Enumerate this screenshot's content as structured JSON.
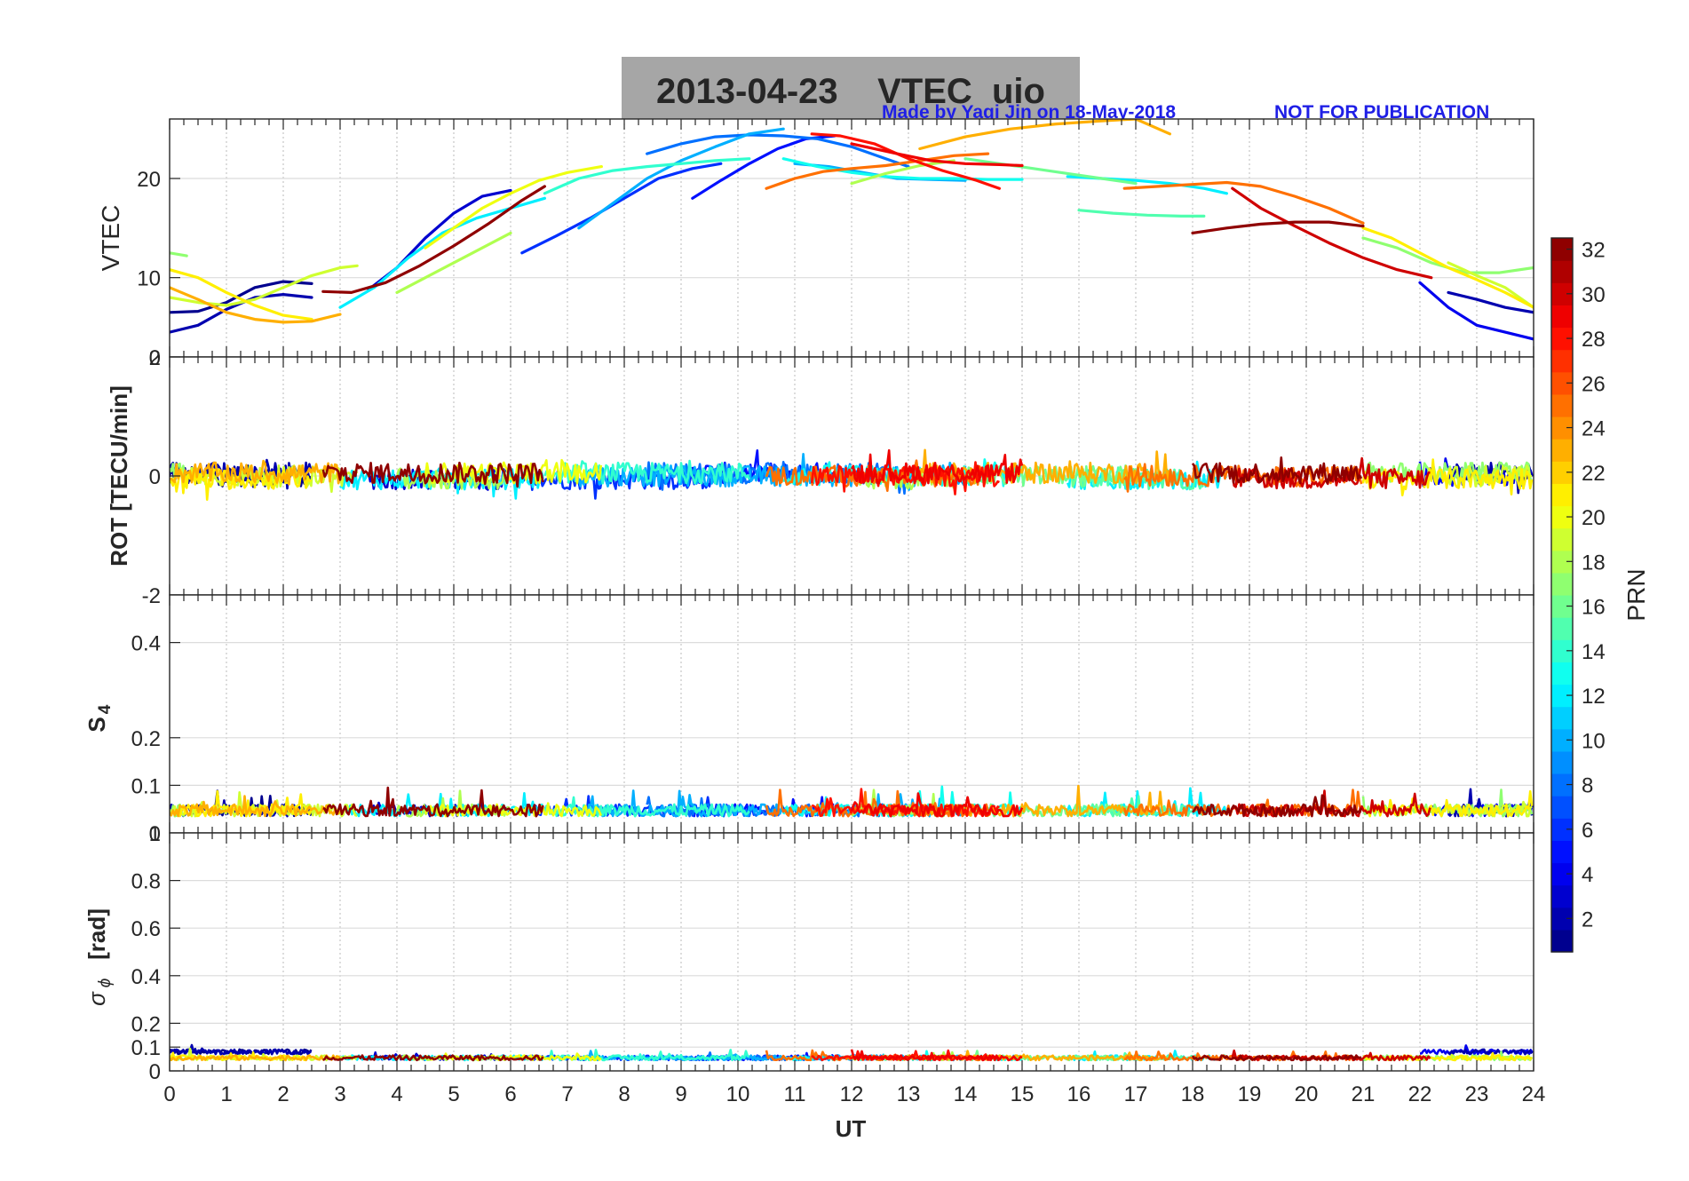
{
  "title": {
    "text": "2013-04-23    VTEC  uio",
    "credit": "Made by Yaqi Jin on 18-May-2018",
    "notice": "NOT FOR PUBLICATION"
  },
  "colors": {
    "title_bg": "#a6a6a6",
    "credit": "#1f1fe6",
    "axis": "#262626",
    "grid": "#bdbdbd"
  },
  "chart_data": [
    {
      "type": "line",
      "panel": "vtec",
      "ylabel": "VTEC",
      "xlim": [
        0,
        24
      ],
      "ylim": [
        2,
        26
      ],
      "yticks": [
        10,
        20
      ],
      "yticklabels": [
        "10",
        "20"
      ],
      "lower_edge_label": "0",
      "series": [
        {
          "prn": 1,
          "x": [
            0,
            0.5,
            1,
            1.5,
            2,
            2.5
          ],
          "y": [
            6.5,
            6.6,
            7.5,
            9.0,
            9.6,
            9.4
          ]
        },
        {
          "prn": 2,
          "x": [
            0,
            0.5,
            1,
            1.5,
            2,
            2.5
          ],
          "y": [
            4.5,
            5.2,
            6.8,
            8.0,
            8.3,
            8.0
          ]
        },
        {
          "prn": 3,
          "x": [
            3.5,
            4,
            4.5,
            5,
            5.5,
            6
          ],
          "y": [
            8.8,
            11.0,
            14.0,
            16.5,
            18.2,
            18.8
          ]
        },
        {
          "prn": 5,
          "x": [
            9.2,
            9.7,
            10.2,
            10.7,
            11.2,
            11.7
          ],
          "y": [
            18.0,
            19.8,
            21.5,
            23.0,
            24.0,
            24.3
          ]
        },
        {
          "prn": 6,
          "x": [
            6.2,
            6.8,
            7.4,
            8.0,
            8.6,
            9.2,
            9.7
          ],
          "y": [
            12.5,
            14.2,
            16.0,
            18.0,
            20.0,
            21.0,
            21.5
          ]
        },
        {
          "prn": 8,
          "x": [
            8.4,
            9.0,
            9.6,
            10.2,
            10.8,
            11.4,
            12.0,
            12.6,
            13.0
          ],
          "y": [
            22.5,
            23.5,
            24.2,
            24.4,
            24.3,
            24.0,
            23.2,
            22.0,
            21.2
          ]
        },
        {
          "prn": 4,
          "x": [
            22.0,
            22.5,
            23.0,
            23.5,
            24.0
          ],
          "y": [
            9.5,
            7.0,
            5.2,
            4.5,
            3.8
          ]
        },
        {
          "prn": 2,
          "x": [
            22.5,
            23.0,
            23.5,
            24.0
          ],
          "y": [
            8.5,
            7.8,
            7.0,
            6.5
          ]
        },
        {
          "prn": 10,
          "x": [
            7.2,
            7.8,
            8.4,
            9.0,
            9.6,
            10.2,
            10.8
          ],
          "y": [
            15.0,
            17.5,
            20.0,
            21.8,
            23.2,
            24.5,
            25.0
          ]
        },
        {
          "prn": 10,
          "x": [
            11.0,
            11.6,
            12.2,
            12.8,
            13.4,
            14.0
          ],
          "y": [
            21.5,
            21.2,
            20.6,
            20.0,
            19.9,
            19.8
          ]
        },
        {
          "prn": 12,
          "x": [
            3.0,
            3.6,
            4.2,
            4.8,
            5.4,
            6.0,
            6.6
          ],
          "y": [
            7.0,
            9.0,
            12.0,
            14.5,
            16.0,
            17.0,
            18.0
          ]
        },
        {
          "prn": 12,
          "x": [
            15.8,
            16.4,
            17.0,
            17.6,
            18.2,
            18.6
          ],
          "y": [
            20.2,
            20.0,
            19.8,
            19.5,
            19.0,
            18.5
          ]
        },
        {
          "prn": 13,
          "x": [
            10.8,
            11.4,
            12.0,
            12.6,
            13.2,
            13.8,
            14.4,
            15.0
          ],
          "y": [
            22.0,
            21.2,
            20.6,
            20.2,
            20.0,
            20.0,
            19.9,
            19.9
          ]
        },
        {
          "prn": 14,
          "x": [
            6.6,
            7.2,
            7.8,
            8.4,
            9.0,
            9.6,
            10.2
          ],
          "y": [
            18.5,
            20.0,
            20.8,
            21.2,
            21.5,
            21.8,
            22.0
          ]
        },
        {
          "prn": 15,
          "x": [
            16.0,
            16.6,
            17.2,
            17.8,
            18.2
          ],
          "y": [
            16.8,
            16.5,
            16.3,
            16.2,
            16.2
          ]
        },
        {
          "prn": 16,
          "x": [
            14.0,
            14.6,
            15.2,
            15.8,
            16.4,
            17.0
          ],
          "y": [
            22.0,
            21.5,
            21.0,
            20.5,
            20.0,
            19.5
          ]
        },
        {
          "prn": 17,
          "x": [
            0,
            0.3
          ],
          "y": [
            12.5,
            12.2
          ]
        },
        {
          "prn": 17,
          "x": [
            21.0,
            21.6,
            22.2,
            22.8,
            23.4,
            24.0
          ],
          "y": [
            14.0,
            13.0,
            11.5,
            10.5,
            10.5,
            11.0
          ]
        },
        {
          "prn": 18,
          "x": [
            4.0,
            4.5,
            5.0,
            5.5,
            6.0
          ],
          "y": [
            8.5,
            10.0,
            11.5,
            13.0,
            14.5
          ]
        },
        {
          "prn": 18,
          "x": [
            12.0,
            12.6,
            13.2,
            13.8
          ],
          "y": [
            19.5,
            20.5,
            21.3,
            21.8
          ]
        },
        {
          "prn": 19,
          "x": [
            0,
            0.5,
            1,
            1.5,
            2,
            2.5,
            3,
            3.3
          ],
          "y": [
            8.0,
            7.5,
            7.2,
            7.8,
            9.0,
            10.2,
            11.0,
            11.2
          ]
        },
        {
          "prn": 19,
          "x": [
            22.5,
            23.0,
            23.5,
            24.0
          ],
          "y": [
            11.5,
            10.2,
            9.0,
            7.0
          ]
        },
        {
          "prn": 20,
          "x": [
            4.5,
            5.0,
            5.5,
            6.0,
            6.5,
            7.0,
            7.6
          ],
          "y": [
            13.0,
            15.0,
            17.0,
            18.5,
            19.8,
            20.6,
            21.2
          ]
        },
        {
          "prn": 21,
          "x": [
            0,
            0.5,
            1,
            1.5,
            2,
            2.5
          ],
          "y": [
            10.8,
            10.0,
            8.5,
            7.2,
            6.2,
            5.8
          ]
        },
        {
          "prn": 21,
          "x": [
            21.0,
            21.5,
            22.0,
            22.5,
            23.0,
            23.5,
            24.0
          ],
          "y": [
            15.0,
            14.0,
            12.5,
            11.0,
            9.8,
            8.5,
            7.0
          ]
        },
        {
          "prn": 23,
          "x": [
            0,
            0.5,
            1,
            1.5,
            2,
            2.5,
            3
          ],
          "y": [
            9.0,
            7.8,
            6.5,
            5.8,
            5.5,
            5.6,
            6.3
          ]
        },
        {
          "prn": 23,
          "x": [
            13.2,
            14.0,
            14.8,
            15.6,
            16.4,
            17.0,
            17.6
          ],
          "y": [
            23.0,
            24.2,
            25.0,
            25.5,
            25.8,
            26.0,
            24.5
          ]
        },
        {
          "prn": 25,
          "x": [
            10.5,
            11.0,
            11.5,
            12.0,
            12.6,
            13.2,
            13.8,
            14.4
          ],
          "y": [
            19.0,
            20.0,
            20.7,
            21.0,
            21.3,
            21.8,
            22.3,
            22.5
          ]
        },
        {
          "prn": 25,
          "x": [
            16.8,
            17.4,
            18.0,
            18.6,
            19.2,
            19.8,
            20.4,
            21.0
          ],
          "y": [
            19.0,
            19.2,
            19.4,
            19.6,
            19.2,
            18.2,
            17.0,
            15.5
          ]
        },
        {
          "prn": 28,
          "x": [
            11.3,
            11.8,
            12.4,
            13.0,
            13.6,
            14.2,
            14.6
          ],
          "y": [
            24.5,
            24.3,
            23.5,
            22.0,
            20.8,
            19.8,
            19.0
          ]
        },
        {
          "prn": 29,
          "x": [
            12.0,
            12.8,
            13.4,
            14.0,
            14.6,
            15.0
          ],
          "y": [
            23.5,
            22.5,
            21.8,
            21.5,
            21.4,
            21.3
          ]
        },
        {
          "prn": 30,
          "x": [
            18.7,
            19.2,
            19.8,
            20.4,
            21.0,
            21.6,
            22.2
          ],
          "y": [
            19.0,
            17.0,
            15.2,
            13.5,
            12.0,
            10.8,
            10.0
          ]
        },
        {
          "prn": 32,
          "x": [
            2.7,
            3.2,
            3.8,
            4.4,
            5.0,
            5.6,
            6.2,
            6.6
          ],
          "y": [
            8.6,
            8.5,
            9.5,
            11.2,
            13.2,
            15.4,
            17.8,
            19.2
          ]
        },
        {
          "prn": 32,
          "x": [
            18.0,
            18.6,
            19.2,
            19.8,
            20.4,
            21.0
          ],
          "y": [
            14.5,
            15.0,
            15.4,
            15.6,
            15.6,
            15.2
          ]
        }
      ]
    },
    {
      "type": "line",
      "panel": "rot",
      "ylabel": "ROT [TECU/min]",
      "xlim": [
        0,
        24
      ],
      "ylim": [
        -2,
        2
      ],
      "yticks": [
        -2,
        0,
        2
      ],
      "yticklabels": [
        "-2",
        "0",
        "2"
      ],
      "series_note": "Noisy ROT traces centred near 0 (roughly -0.5 to 0.5) for each PRN arc"
    },
    {
      "type": "line",
      "panel": "s4",
      "ylabel": "S",
      "ylabel_sub": "4",
      "xlim": [
        0,
        24
      ],
      "ylim": [
        0,
        0.5
      ],
      "yticks": [
        0.1,
        0.2,
        0.4
      ],
      "yticklabels": [
        "0.1",
        "0.2",
        "0.4"
      ],
      "lower_edge_label": "0",
      "series_note": "Noisy S4 traces between ~0.02 and ~0.12"
    },
    {
      "type": "line",
      "panel": "sigma_phi",
      "ylabel": "σ",
      "ylabel_sub": "ϕ",
      "ylabel_unit": "[rad]",
      "xlim": [
        0,
        24
      ],
      "ylim": [
        0,
        1
      ],
      "yticks": [
        0,
        0.1,
        0.2,
        0.4,
        0.6,
        0.8
      ],
      "yticklabels": [
        "0",
        "0.1",
        "0.2",
        "0.4",
        "0.6",
        "0.8"
      ],
      "upper_edge_label": "1",
      "xticks": [
        0,
        1,
        2,
        3,
        4,
        5,
        6,
        7,
        8,
        9,
        10,
        11,
        12,
        13,
        14,
        15,
        16,
        17,
        18,
        19,
        20,
        21,
        22,
        23,
        24
      ],
      "xticklabels": [
        "0",
        "1",
        "2",
        "3",
        "4",
        "5",
        "6",
        "7",
        "8",
        "9",
        "10",
        "11",
        "12",
        "13",
        "14",
        "15",
        "16",
        "17",
        "18",
        "19",
        "20",
        "21",
        "22",
        "23",
        "24"
      ],
      "xlabel": "UT",
      "series_note": "Noisy phase-scintillation traces between ~0.02 and ~0.1"
    }
  ],
  "colorbar": {
    "label": "PRN",
    "min": 1,
    "max": 32,
    "ticks": [
      "2",
      "4",
      "6",
      "8",
      "10",
      "12",
      "14",
      "16",
      "18",
      "20",
      "22",
      "24",
      "26",
      "28",
      "30",
      "32"
    ]
  }
}
